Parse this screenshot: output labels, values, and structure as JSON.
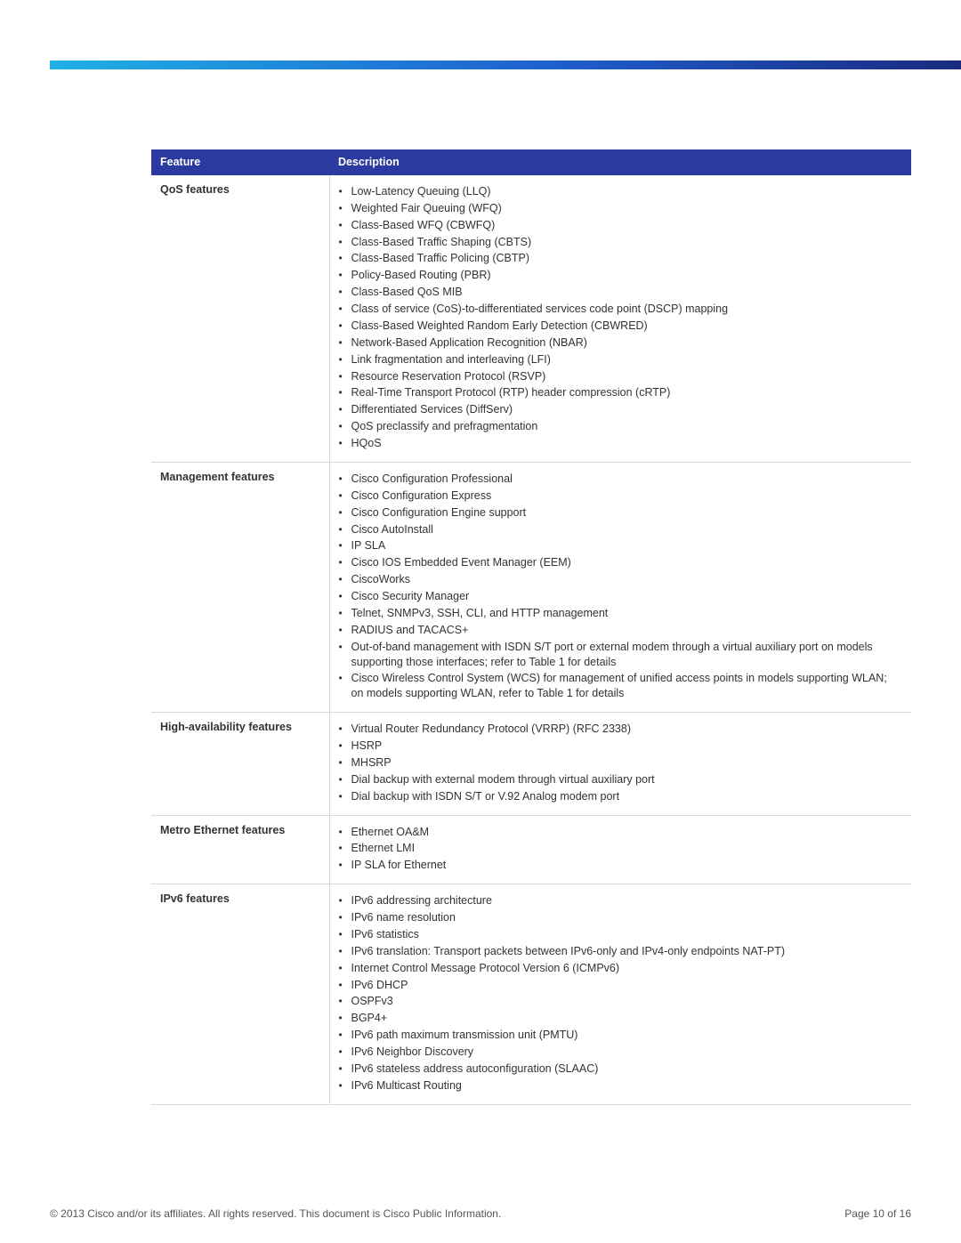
{
  "colors": {
    "header_bg": "#2a3a9e",
    "header_text": "#ffffff",
    "border": "#d9d9d9",
    "text": "#333333",
    "topbar_gradient": [
      "#1fb0e6",
      "#1f5fcf",
      "#1a2a80"
    ]
  },
  "table": {
    "headers": {
      "feature": "Feature",
      "description": "Description"
    },
    "rows": [
      {
        "feature": "QoS features",
        "items": [
          "Low-Latency Queuing (LLQ)",
          "Weighted Fair Queuing (WFQ)",
          "Class-Based WFQ (CBWFQ)",
          "Class-Based Traffic Shaping (CBTS)",
          "Class-Based Traffic Policing (CBTP)",
          "Policy-Based Routing (PBR)",
          "Class-Based QoS MIB",
          "Class of service (CoS)-to-differentiated services code point (DSCP) mapping",
          "Class-Based Weighted Random Early Detection (CBWRED)",
          "Network-Based Application Recognition (NBAR)",
          "Link fragmentation and interleaving (LFI)",
          "Resource Reservation Protocol (RSVP)",
          "Real-Time Transport Protocol (RTP) header compression (cRTP)",
          "Differentiated Services (DiffServ)",
          "QoS preclassify and prefragmentation",
          "HQoS"
        ]
      },
      {
        "feature": "Management features",
        "items": [
          "Cisco Configuration Professional",
          "Cisco Configuration Express",
          "Cisco Configuration Engine support",
          "Cisco AutoInstall",
          "IP SLA",
          "Cisco IOS Embedded Event Manager (EEM)",
          "CiscoWorks",
          "Cisco Security Manager",
          "Telnet, SNMPv3, SSH, CLI, and HTTP management",
          "RADIUS and TACACS+",
          "Out-of-band management with ISDN S/T port or external modem through a virtual auxiliary port on models supporting those interfaces; refer to Table 1 for details",
          "Cisco Wireless Control System (WCS) for management of unified access points in models supporting WLAN; on models supporting WLAN, refer to Table 1 for details"
        ]
      },
      {
        "feature": "High-availability features",
        "items": [
          "Virtual Router Redundancy Protocol (VRRP) (RFC 2338)",
          "HSRP",
          "MHSRP",
          "Dial backup with external modem through virtual auxiliary port",
          "Dial backup with ISDN S/T or V.92 Analog modem port"
        ]
      },
      {
        "feature": "Metro Ethernet features",
        "items": [
          "Ethernet OA&M",
          "Ethernet LMI",
          "IP SLA for Ethernet"
        ]
      },
      {
        "feature": "IPv6 features",
        "items": [
          "IPv6 addressing architecture",
          "IPv6 name resolution",
          "IPv6 statistics",
          "IPv6 translation: Transport packets between IPv6-only and IPv4-only endpoints NAT-PT)",
          "Internet Control Message Protocol Version 6 (ICMPv6)",
          "IPv6 DHCP",
          "OSPFv3",
          "BGP4+",
          "IPv6 path maximum transmission unit (PMTU)",
          "IPv6 Neighbor Discovery",
          "IPv6 stateless address autoconfiguration (SLAAC)",
          "IPv6 Multicast Routing"
        ]
      }
    ]
  },
  "footer": {
    "left": "© 2013 Cisco and/or its affiliates. All rights reserved. This document is Cisco Public Information.",
    "right": "Page 10 of 16"
  }
}
